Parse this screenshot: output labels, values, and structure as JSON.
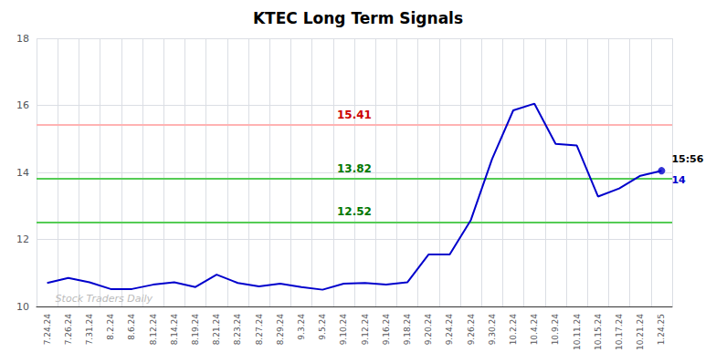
{
  "chart_data": {
    "type": "line",
    "title": "KTEC Long Term Signals",
    "categories": [
      "7.24.24",
      "7.26.24",
      "7.31.24",
      "8.2.24",
      "8.6.24",
      "8.12.24",
      "8.14.24",
      "8.19.24",
      "8.21.24",
      "8.23.24",
      "8.27.24",
      "8.29.24",
      "9.3.24",
      "9.5.24",
      "9.10.24",
      "9.12.24",
      "9.16.24",
      "9.18.24",
      "9.20.24",
      "9.24.24",
      "9.26.24",
      "9.30.24",
      "10.2.24",
      "10.4.24",
      "10.9.24",
      "10.11.24",
      "10.15.24",
      "10.17.24",
      "10.21.24",
      "1.24.25"
    ],
    "values": [
      10.7,
      10.85,
      10.72,
      10.52,
      10.52,
      10.65,
      10.72,
      10.58,
      10.95,
      10.7,
      10.6,
      10.68,
      10.58,
      10.5,
      10.68,
      10.7,
      10.65,
      10.72,
      11.55,
      11.55,
      12.58,
      14.4,
      15.85,
      16.05,
      14.85,
      14.8,
      13.28,
      13.52,
      13.9,
      14.05
    ],
    "color": "#0000cc",
    "ylim": [
      10,
      18
    ],
    "yticks": [
      10,
      12,
      14,
      16,
      18
    ],
    "grid": true,
    "hlines": [
      {
        "value": 15.41,
        "label": "15.41",
        "color": "#ffb3b3",
        "label_color": "#cc0000"
      },
      {
        "value": 13.82,
        "label": "13.82",
        "color": "#55cc55",
        "label_color": "#007700"
      },
      {
        "value": 12.52,
        "label": "12.52",
        "color": "#55cc55",
        "label_color": "#007700"
      }
    ],
    "last_point_labels": [
      {
        "text": "15:56",
        "color": "#000000"
      },
      {
        "text": "14",
        "color": "#0000cc"
      }
    ],
    "watermark": {
      "text": "Stock Traders Daily",
      "color": "#bbbbbb"
    }
  }
}
